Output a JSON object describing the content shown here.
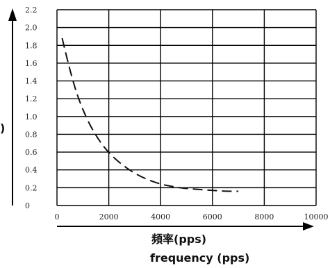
{
  "chart_data": {
    "type": "line",
    "title": "",
    "xlabel_lines": [
      "頻率(pps)",
      "frequency (pps)"
    ],
    "ylabel_fragment": ")",
    "xlim": [
      0,
      10000
    ],
    "ylim": [
      0,
      2.2
    ],
    "x_ticks": [
      "0",
      "2000",
      "4000",
      "6000",
      "8000",
      "10000"
    ],
    "y_ticks": [
      "0",
      "0.2",
      "0.4",
      "0.6",
      "0.8",
      "1.0",
      "1.2",
      "1.4",
      "1.6",
      "1.8",
      "2.0",
      "2.2"
    ],
    "grid": true,
    "line_style": "dashed",
    "series": [
      {
        "x": [
          200,
          500,
          800,
          1200,
          1600,
          2000,
          2500,
          3000,
          3500,
          4000,
          4500,
          5000,
          5500,
          6000,
          6500,
          7000
        ],
        "y": [
          1.88,
          1.52,
          1.22,
          0.94,
          0.74,
          0.59,
          0.46,
          0.36,
          0.29,
          0.24,
          0.21,
          0.19,
          0.18,
          0.17,
          0.16,
          0.16
        ]
      }
    ]
  }
}
